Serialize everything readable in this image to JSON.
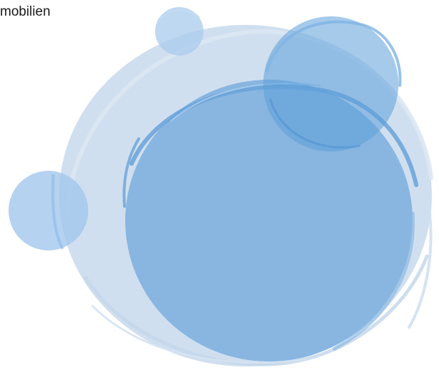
{
  "heading": "mobilien",
  "colors": {
    "background": "#ffffff",
    "large_pale_circle": "#c8d9ec",
    "main_circle": "#7fb1df",
    "accent_circle": "#5d9fd9",
    "small_circle": "#a9cbee",
    "text": "#1a1a1a"
  }
}
